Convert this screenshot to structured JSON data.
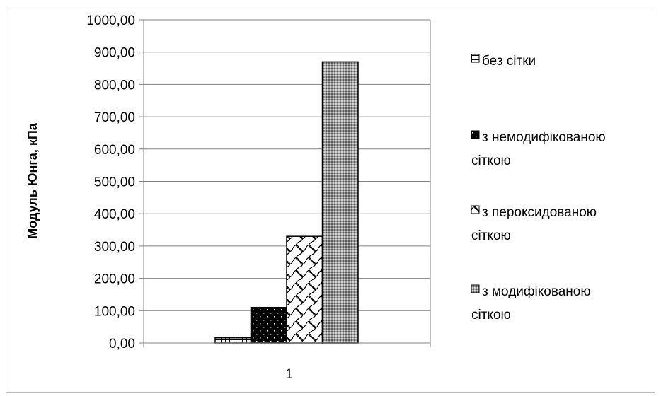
{
  "chart_data": {
    "type": "bar",
    "categories": [
      "1"
    ],
    "series": [
      {
        "name": "без сітки",
        "values": [
          16
        ],
        "pattern": "grid"
      },
      {
        "name": "з немодифікованою сіткою",
        "values": [
          110
        ],
        "pattern": "dots"
      },
      {
        "name": "з  пероксидованою сіткою",
        "values": [
          330
        ],
        "pattern": "weave"
      },
      {
        "name": "з  модифікованою сіткою",
        "values": [
          870
        ],
        "pattern": "crosshatch"
      }
    ],
    "ylabel": "Модуль Юнга, кПа",
    "ylim": [
      0,
      1000
    ],
    "yticks": [
      "0,00",
      "100,00",
      "200,00",
      "300,00",
      "400,00",
      "500,00",
      "600,00",
      "700,00",
      "800,00",
      "900,00",
      "1000,00"
    ],
    "grid": true,
    "legend_position": "right",
    "legend_lines": [
      [
        "без сітки"
      ],
      [
        "з немодифікованою",
        "сіткою"
      ],
      [
        "з  пероксидованою",
        "сіткою"
      ],
      [
        "з  модифікованою",
        "сіткою"
      ]
    ],
    "colors": {
      "bar_stroke": "#000000",
      "gridline": "#808080",
      "axis": "#808080"
    }
  }
}
